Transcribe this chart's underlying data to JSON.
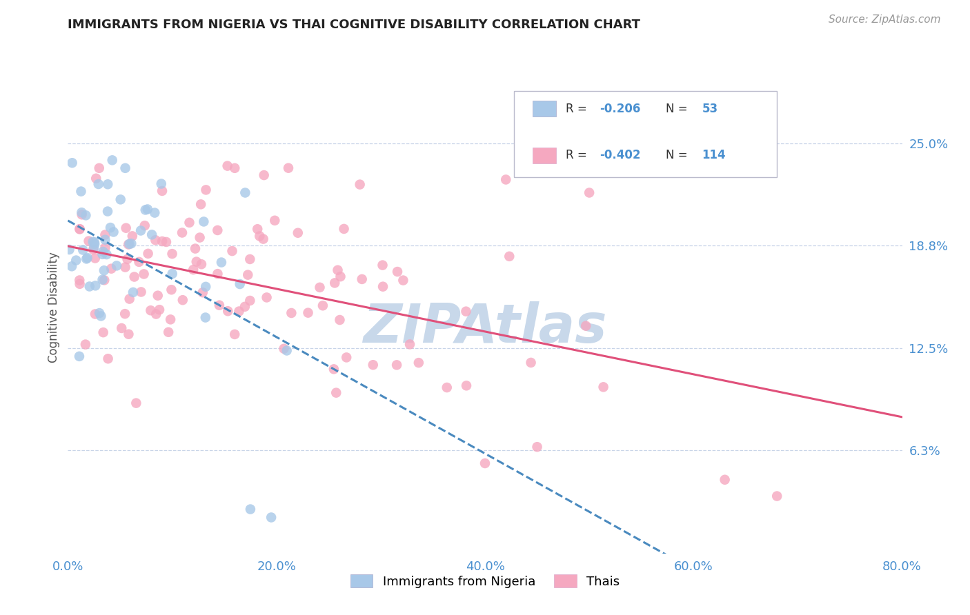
{
  "title": "IMMIGRANTS FROM NIGERIA VS THAI COGNITIVE DISABILITY CORRELATION CHART",
  "source": "Source: ZipAtlas.com",
  "ylabel_label": "Cognitive Disability",
  "blue_R": -0.206,
  "blue_N": 53,
  "pink_R": -0.402,
  "pink_N": 114,
  "xlim": [
    0.0,
    0.8
  ],
  "ylim": [
    0.0,
    0.3
  ],
  "yticks": [
    0.063,
    0.125,
    0.188,
    0.25
  ],
  "ytick_labels": [
    "6.3%",
    "12.5%",
    "18.8%",
    "25.0%"
  ],
  "xticks": [
    0.0,
    0.2,
    0.4,
    0.6,
    0.8
  ],
  "xtick_labels": [
    "0.0%",
    "20.0%",
    "40.0%",
    "60.0%",
    "80.0%"
  ],
  "blue_scatter_color": "#a8c8e8",
  "blue_line_color": "#4a8abf",
  "pink_scatter_color": "#f5a8c0",
  "pink_line_color": "#e0507a",
  "bg_color": "#ffffff",
  "grid_color": "#c8d4e8",
  "title_color": "#222222",
  "tick_label_color": "#4a90d0",
  "source_color": "#999999",
  "watermark_color": "#c8d8ea",
  "legend_label_blue": "Immigrants from Nigeria",
  "legend_label_pink": "Thais",
  "legend_R_blue": "-0.206",
  "legend_N_blue": "53",
  "legend_R_pink": "-0.402",
  "legend_N_pink": "114"
}
